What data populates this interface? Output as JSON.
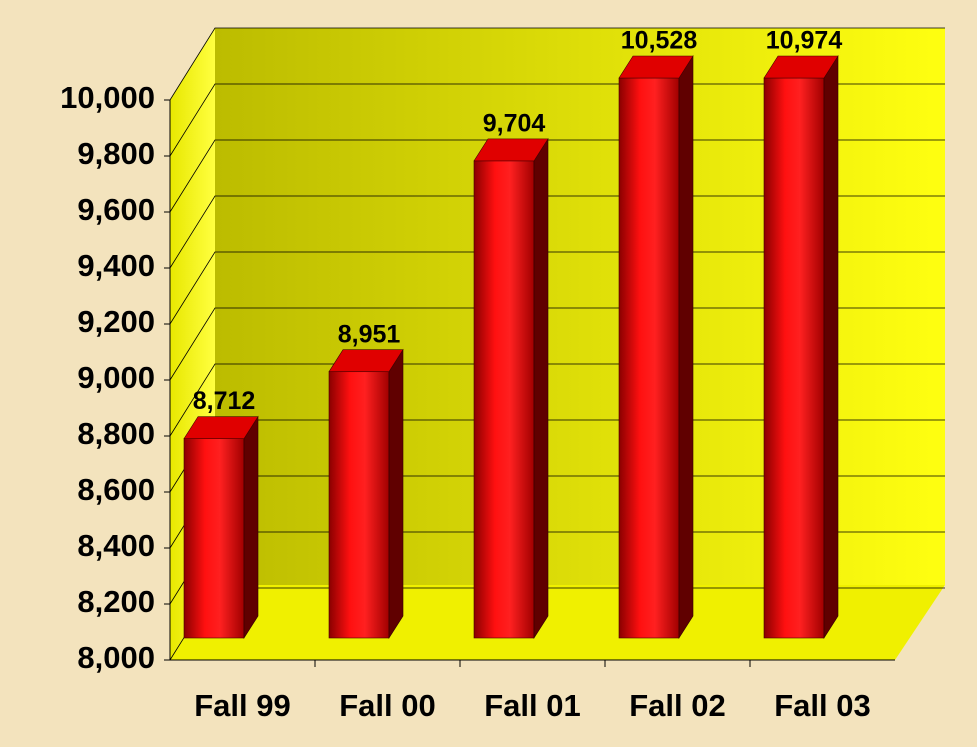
{
  "chart_data": {
    "type": "bar3d",
    "categories": [
      "Fall 99",
      "Fall 00",
      "Fall 01",
      "Fall 02",
      "Fall 03"
    ],
    "values": [
      8712,
      8951,
      9704,
      10528,
      10974
    ],
    "value_labels": [
      "8,712",
      "8,951",
      "9,704",
      "10,528",
      "10,974"
    ],
    "color": "#e00000",
    "ylim": [
      8000,
      10000
    ],
    "yticks": [
      {
        "value": 8000,
        "label": "8,000"
      },
      {
        "value": 8200,
        "label": "8,200"
      },
      {
        "value": 8400,
        "label": "8,400"
      },
      {
        "value": 8600,
        "label": "8,600"
      },
      {
        "value": 8800,
        "label": "8,800"
      },
      {
        "value": 9000,
        "label": "9,000"
      },
      {
        "value": 9200,
        "label": "9,200"
      },
      {
        "value": 9400,
        "label": "9,400"
      },
      {
        "value": 9600,
        "label": "9,600"
      },
      {
        "value": 9800,
        "label": "9,800"
      },
      {
        "value": 10000,
        "label": "10,000"
      }
    ],
    "grid": true
  }
}
